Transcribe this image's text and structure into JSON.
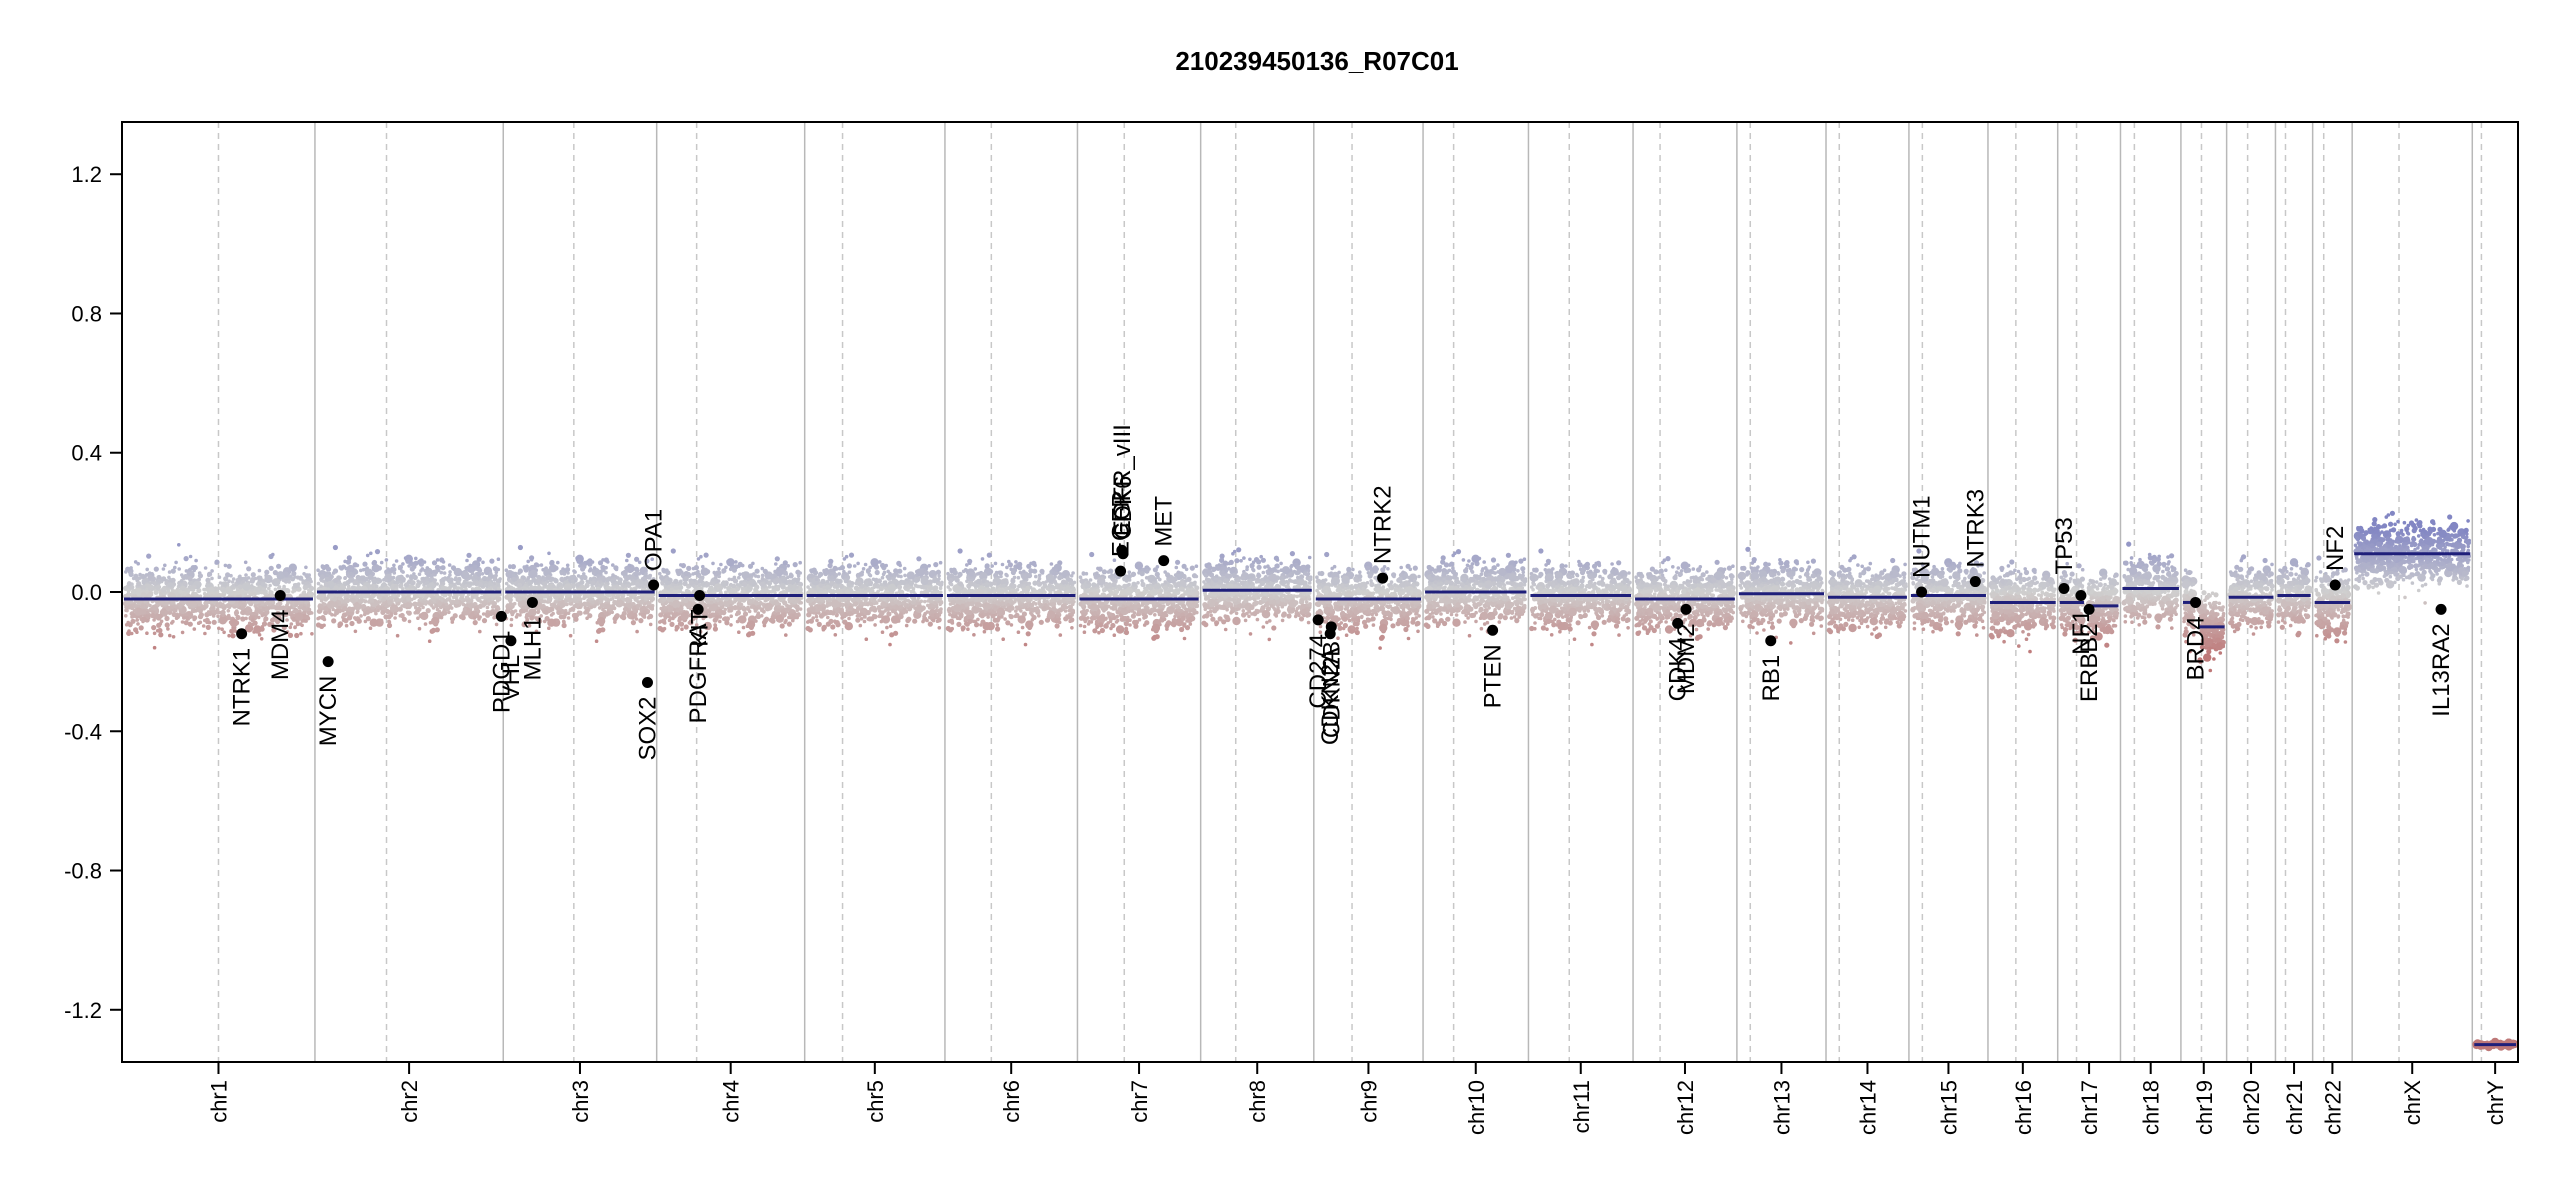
{
  "chart_data": {
    "type": "scatter",
    "title": "210239450136_R07C01",
    "xlabel": "",
    "ylabel": "",
    "ylim": [
      -1.35,
      1.35
    ],
    "y_ticks": [
      -1.2,
      -0.8,
      -0.4,
      0.0,
      0.4,
      0.8,
      1.2
    ],
    "y_tick_labels": [
      "-1.2",
      "-0.8",
      "-0.4",
      "0.0",
      "0.4",
      "0.8",
      "1.2"
    ],
    "grid": false,
    "colors": {
      "segment": "#1f1f7a",
      "gain_point": "#8f92c6",
      "loss_point": "#c07f7f",
      "neutral_point": "#cfcfcf",
      "gene_dot": "#000000",
      "chrom_boundary": "#b8b8b8",
      "centromere": "#c8c8c8"
    },
    "chromosomes": [
      {
        "name": "chr1",
        "length": 249,
        "centromere": 0.5,
        "segments": [
          {
            "from": 0.0,
            "to": 1.0,
            "value": -0.02
          }
        ]
      },
      {
        "name": "chr2",
        "length": 243,
        "centromere": 0.38,
        "segments": [
          {
            "from": 0.0,
            "to": 1.0,
            "value": 0.0
          }
        ]
      },
      {
        "name": "chr3",
        "length": 198,
        "centromere": 0.46,
        "segments": [
          {
            "from": 0.0,
            "to": 1.0,
            "value": 0.0
          }
        ]
      },
      {
        "name": "chr4",
        "length": 191,
        "centromere": 0.27,
        "segments": [
          {
            "from": 0.0,
            "to": 1.0,
            "value": -0.01
          }
        ]
      },
      {
        "name": "chr5",
        "length": 181,
        "centromere": 0.27,
        "segments": [
          {
            "from": 0.0,
            "to": 1.0,
            "value": -0.01
          }
        ]
      },
      {
        "name": "chr6",
        "length": 171,
        "centromere": 0.35,
        "segments": [
          {
            "from": 0.0,
            "to": 1.0,
            "value": -0.01
          }
        ]
      },
      {
        "name": "chr7",
        "length": 159,
        "centromere": 0.38,
        "segments": [
          {
            "from": 0.0,
            "to": 1.0,
            "value": -0.02
          }
        ]
      },
      {
        "name": "chr8",
        "length": 146,
        "centromere": 0.31,
        "segments": [
          {
            "from": 0.0,
            "to": 1.0,
            "value": 0.005
          }
        ]
      },
      {
        "name": "chr9",
        "length": 141,
        "centromere": 0.35,
        "segments": [
          {
            "from": 0.0,
            "to": 1.0,
            "value": -0.02
          }
        ]
      },
      {
        "name": "chr10",
        "length": 136,
        "centromere": 0.29,
        "segments": [
          {
            "from": 0.0,
            "to": 1.0,
            "value": 0.0
          }
        ]
      },
      {
        "name": "chr11",
        "length": 135,
        "centromere": 0.39,
        "segments": [
          {
            "from": 0.0,
            "to": 1.0,
            "value": -0.01
          }
        ]
      },
      {
        "name": "chr12",
        "length": 134,
        "centromere": 0.26,
        "segments": [
          {
            "from": 0.0,
            "to": 1.0,
            "value": -0.02
          }
        ]
      },
      {
        "name": "chr13",
        "length": 115,
        "centromere": 0.15,
        "segments": [
          {
            "from": 0.0,
            "to": 1.0,
            "value": -0.005
          }
        ]
      },
      {
        "name": "chr14",
        "length": 107,
        "centromere": 0.16,
        "segments": [
          {
            "from": 0.0,
            "to": 1.0,
            "value": -0.015
          }
        ]
      },
      {
        "name": "chr15",
        "length": 102,
        "centromere": 0.17,
        "segments": [
          {
            "from": 0.0,
            "to": 1.0,
            "value": -0.01
          }
        ]
      },
      {
        "name": "chr16",
        "length": 90,
        "centromere": 0.4,
        "segments": [
          {
            "from": 0.0,
            "to": 1.0,
            "value": -0.03
          }
        ]
      },
      {
        "name": "chr17",
        "length": 81,
        "centromere": 0.3,
        "segments": [
          {
            "from": 0.0,
            "to": 0.45,
            "value": -0.03
          },
          {
            "from": 0.45,
            "to": 1.0,
            "value": -0.04
          }
        ]
      },
      {
        "name": "chr18",
        "length": 78,
        "centromere": 0.23,
        "segments": [
          {
            "from": 0.0,
            "to": 1.0,
            "value": 0.01
          }
        ]
      },
      {
        "name": "chr19",
        "length": 59,
        "centromere": 0.45,
        "segments": [
          {
            "from": 0.0,
            "to": 0.35,
            "value": -0.03
          },
          {
            "from": 0.35,
            "to": 1.0,
            "value": -0.1
          }
        ]
      },
      {
        "name": "chr20",
        "length": 63,
        "centromere": 0.43,
        "segments": [
          {
            "from": 0.0,
            "to": 1.0,
            "value": -0.015
          }
        ]
      },
      {
        "name": "chr21",
        "length": 48,
        "centromere": 0.27,
        "segments": [
          {
            "from": 0.0,
            "to": 1.0,
            "value": -0.01
          }
        ]
      },
      {
        "name": "chr22",
        "length": 51,
        "centromere": 0.28,
        "segments": [
          {
            "from": 0.0,
            "to": 1.0,
            "value": -0.03
          }
        ]
      },
      {
        "name": "chrX",
        "length": 155,
        "centromere": 0.39,
        "segments": [
          {
            "from": 0.0,
            "to": 1.0,
            "value": 0.11
          }
        ]
      },
      {
        "name": "chrY",
        "length": 59,
        "centromere": 0.2,
        "segments": [
          {
            "from": 0.0,
            "to": 1.0,
            "value": -1.3
          }
        ]
      }
    ],
    "genes": [
      {
        "name": "NTRK1",
        "chrom": "chr1",
        "pos": 0.62,
        "value": -0.12,
        "label_side": "below"
      },
      {
        "name": "MDM4",
        "chrom": "chr1",
        "pos": 0.82,
        "value": -0.01,
        "label_side": "below"
      },
      {
        "name": "MYCN",
        "chrom": "chr2",
        "pos": 0.07,
        "value": -0.2,
        "label_side": "below"
      },
      {
        "name": "PDGD1",
        "chrom": "chr2",
        "pos": 0.99,
        "value": -0.07,
        "label_side": "below"
      },
      {
        "name": "VHL",
        "chrom": "chr3",
        "pos": 0.05,
        "value": -0.14,
        "label_side": "below"
      },
      {
        "name": "MLH1",
        "chrom": "chr3",
        "pos": 0.19,
        "value": -0.03,
        "label_side": "below"
      },
      {
        "name": "SOX2",
        "chrom": "chr3",
        "pos": 0.94,
        "value": -0.26,
        "label_side": "below"
      },
      {
        "name": "OPA1",
        "chrom": "chr3",
        "pos": 0.98,
        "value": 0.02,
        "label_side": "above"
      },
      {
        "name": "PDGFRA",
        "chrom": "chr4",
        "pos": 0.28,
        "value": -0.05,
        "label_side": "below"
      },
      {
        "name": "KIT",
        "chrom": "chr4",
        "pos": 0.29,
        "value": -0.01,
        "label_side": "below"
      },
      {
        "name": "EGFR",
        "chrom": "chr7",
        "pos": 0.35,
        "value": 0.06,
        "label_side": "above"
      },
      {
        "name": "EGFR_vIII",
        "chrom": "chr7",
        "pos": 0.36,
        "value": 0.12,
        "label_side": "above"
      },
      {
        "name": "CDK6",
        "chrom": "chr7",
        "pos": 0.37,
        "value": 0.11,
        "label_side": "above"
      },
      {
        "name": "MET",
        "chrom": "chr7",
        "pos": 0.7,
        "value": 0.09,
        "label_side": "above"
      },
      {
        "name": "CD274",
        "chrom": "chr9",
        "pos": 0.04,
        "value": -0.08,
        "label_side": "below"
      },
      {
        "name": "CDKN2A",
        "chrom": "chr9",
        "pos": 0.15,
        "value": -0.12,
        "label_side": "below"
      },
      {
        "name": "CDKN2B",
        "chrom": "chr9",
        "pos": 0.16,
        "value": -0.1,
        "label_side": "below"
      },
      {
        "name": "NTRK2",
        "chrom": "chr9",
        "pos": 0.63,
        "value": 0.04,
        "label_side": "above"
      },
      {
        "name": "PTEN",
        "chrom": "chr10",
        "pos": 0.66,
        "value": -0.11,
        "label_side": "below"
      },
      {
        "name": "CDK4",
        "chrom": "chr12",
        "pos": 0.43,
        "value": -0.09,
        "label_side": "below"
      },
      {
        "name": "MDM2",
        "chrom": "chr12",
        "pos": 0.51,
        "value": -0.05,
        "label_side": "below"
      },
      {
        "name": "RB1",
        "chrom": "chr13",
        "pos": 0.38,
        "value": -0.14,
        "label_side": "below"
      },
      {
        "name": "NUTM1",
        "chrom": "chr15",
        "pos": 0.16,
        "value": 0.0,
        "label_side": "above"
      },
      {
        "name": "NTRK3",
        "chrom": "chr15",
        "pos": 0.84,
        "value": 0.03,
        "label_side": "above"
      },
      {
        "name": "TP53",
        "chrom": "chr17",
        "pos": 0.1,
        "value": 0.01,
        "label_side": "above"
      },
      {
        "name": "NF1",
        "chrom": "chr17",
        "pos": 0.37,
        "value": -0.01,
        "label_side": "below"
      },
      {
        "name": "ERBB2",
        "chrom": "chr17",
        "pos": 0.5,
        "value": -0.05,
        "label_side": "below"
      },
      {
        "name": "BRD4",
        "chrom": "chr19",
        "pos": 0.32,
        "value": -0.03,
        "label_side": "below"
      },
      {
        "name": "NF2",
        "chrom": "chr22",
        "pos": 0.57,
        "value": 0.02,
        "label_side": "above"
      },
      {
        "name": "IL13RA2",
        "chrom": "chrX",
        "pos": 0.74,
        "value": -0.05,
        "label_side": "below"
      }
    ]
  }
}
